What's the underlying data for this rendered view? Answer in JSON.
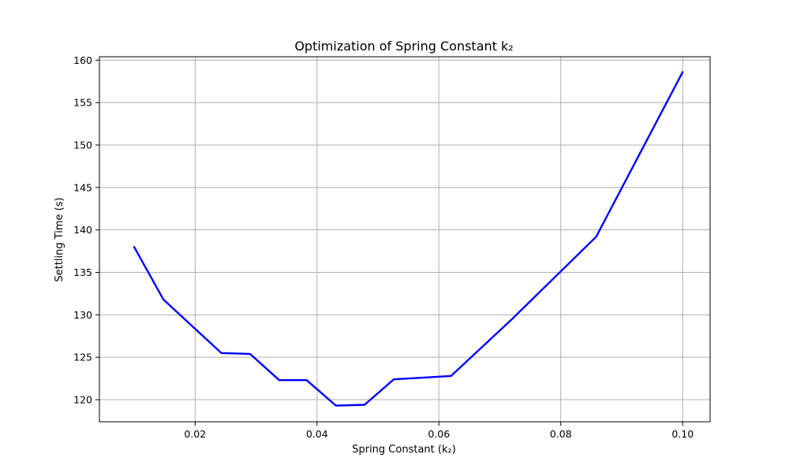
{
  "chart_data": {
    "type": "line",
    "title": "Optimization of Spring Constant k₂",
    "xlabel": "Spring Constant (k₂)",
    "ylabel": "Settling Time (s)",
    "xlim": [
      0.0043,
      0.1045
    ],
    "ylim": [
      117.4,
      160.4
    ],
    "xticks": [
      0.02,
      0.04,
      0.06,
      0.08,
      0.1
    ],
    "xtick_labels": [
      "0.02",
      "0.04",
      "0.06",
      "0.08",
      "0.10"
    ],
    "yticks": [
      120,
      125,
      130,
      135,
      140,
      145,
      150,
      155,
      160
    ],
    "ytick_labels": [
      "120",
      "125",
      "130",
      "135",
      "140",
      "145",
      "150",
      "155",
      "160"
    ],
    "grid": true,
    "series": [
      {
        "color": "#0000ff",
        "x": [
          0.01,
          0.0148,
          0.0243,
          0.029,
          0.0338,
          0.0383,
          0.0431,
          0.0478,
          0.0526,
          0.062,
          0.072,
          0.0858,
          0.1
        ],
        "y": [
          138.0,
          131.8,
          125.5,
          125.4,
          122.3,
          122.3,
          119.3,
          119.4,
          122.4,
          122.8,
          129.5,
          139.2,
          158.6
        ]
      }
    ]
  }
}
